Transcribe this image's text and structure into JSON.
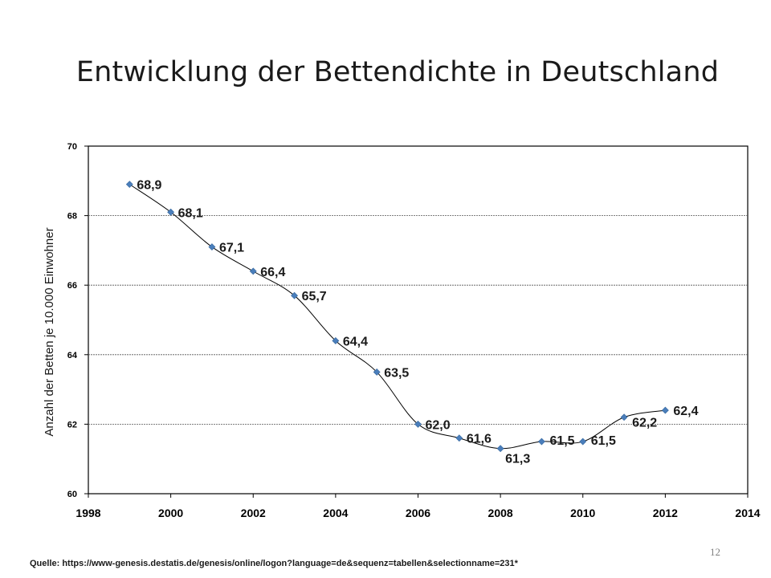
{
  "slide": {
    "title": "Entwicklung der Bettendichte in Deutschland",
    "source": "Quelle: https://www-genesis.destatis.de/genesis/online/logon?language=de&sequenz=tabellen&selectionname=231*",
    "page_number": "12"
  },
  "chart_data": {
    "type": "scatter",
    "title": "",
    "ylabel": "Anzahl der Betten je 10.000 Einwohner",
    "xlabel": "",
    "xlim": [
      1998,
      2014
    ],
    "ylim": [
      60,
      70
    ],
    "x_ticks": [
      "1998",
      "2000",
      "2002",
      "2004",
      "2006",
      "2008",
      "2010",
      "2012",
      "2014"
    ],
    "y_ticks": [
      "60",
      "62",
      "64",
      "66",
      "68",
      "70"
    ],
    "grid": true,
    "smooth_line": true,
    "series": [
      {
        "x": [
          1999,
          2000,
          2001,
          2002,
          2003,
          2004,
          2005,
          2006,
          2007,
          2008,
          2009,
          2010,
          2011,
          2012
        ],
        "values": [
          68.9,
          68.1,
          67.1,
          66.4,
          65.7,
          64.4,
          63.5,
          62.0,
          61.6,
          61.3,
          61.5,
          61.5,
          62.2,
          62.4
        ],
        "labels": [
          "68,9",
          "68,1",
          "67,1",
          "66,4",
          "65,7",
          "64,4",
          "63,5",
          "62,0",
          "61,6",
          "61,3",
          "61,5",
          "61,5",
          "62,2",
          "62,4"
        ],
        "color": "#4a7ebb"
      }
    ]
  }
}
